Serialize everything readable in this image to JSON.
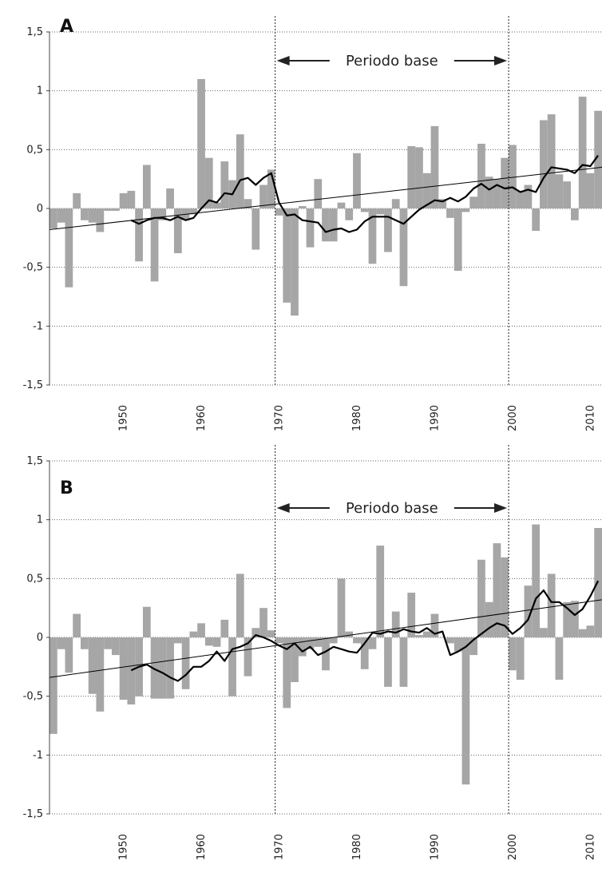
{
  "chart_data": [
    {
      "type": "bar",
      "panel": "A",
      "ylim": [
        -1.5,
        1.5
      ],
      "yticks": [
        "1,5",
        "1",
        "0,5",
        "0",
        "-0,5",
        "-1",
        "-1,5"
      ],
      "ytick_values": [
        1.5,
        1,
        0.5,
        0,
        -0.5,
        -1,
        -1.5
      ],
      "xticks": [
        "1950",
        "1960",
        "1970",
        "1980",
        "1990",
        "2000",
        "2010"
      ],
      "xtick_values": [
        1950,
        1960,
        1970,
        1980,
        1990,
        2000,
        2010
      ],
      "xlim": [
        1941,
        2011
      ],
      "grid": "horizontal dotted",
      "base_period": {
        "label": "Periodo base",
        "start": 1969,
        "end": 1999
      },
      "bar_color": "#a6a6a6",
      "years": [
        1941,
        1942,
        1943,
        1944,
        1945,
        1946,
        1947,
        1948,
        1949,
        1950,
        1951,
        1952,
        1953,
        1954,
        1955,
        1956,
        1957,
        1958,
        1959,
        1960,
        1961,
        1962,
        1963,
        1964,
        1965,
        1966,
        1967,
        1968,
        1969,
        1970,
        1971,
        1972,
        1973,
        1974,
        1975,
        1976,
        1977,
        1978,
        1979,
        1980,
        1981,
        1982,
        1983,
        1984,
        1985,
        1986,
        1987,
        1988,
        1989,
        1990,
        1991,
        1992,
        1993,
        1994,
        1995,
        1996,
        1997,
        1998,
        1999,
        2000,
        2001,
        2002,
        2003,
        2004,
        2005,
        2006,
        2007,
        2008,
        2009,
        2010,
        2011
      ],
      "values": [
        -0.17,
        -0.12,
        -0.67,
        0.13,
        -0.1,
        -0.12,
        -0.2,
        -0.02,
        -0.02,
        0.13,
        0.15,
        -0.45,
        0.37,
        -0.62,
        -0.1,
        0.17,
        -0.38,
        -0.1,
        -0.05,
        1.1,
        0.43,
        0.05,
        0.4,
        0.24,
        0.63,
        0.08,
        -0.35,
        0.2,
        0.33,
        -0.06,
        -0.8,
        -0.91,
        0.02,
        -0.33,
        0.25,
        -0.28,
        -0.28,
        0.05,
        -0.1,
        0.47,
        -0.03,
        -0.47,
        -0.05,
        -0.37,
        0.08,
        -0.66,
        0.53,
        0.52,
        0.3,
        0.7,
        0.08,
        -0.08,
        -0.53,
        -0.03,
        0.1,
        0.55,
        0.27,
        0.25,
        0.43,
        0.54,
        0.15,
        0.2,
        -0.19,
        0.75,
        0.8,
        0.29,
        0.23,
        -0.1,
        0.95,
        0.3,
        0.83
      ],
      "moving_average": {
        "color": "#000000",
        "years": [
          1951,
          1952,
          1953,
          1954,
          1955,
          1956,
          1957,
          1958,
          1959,
          1960,
          1961,
          1962,
          1963,
          1964,
          1965,
          1966,
          1967,
          1968,
          1969,
          1970,
          1971,
          1972,
          1973,
          1974,
          1975,
          1976,
          1977,
          1978,
          1979,
          1980,
          1981,
          1982,
          1983,
          1984,
          1985,
          1986,
          1987,
          1988,
          1989,
          1990,
          1991,
          1992,
          1993,
          1994,
          1995,
          1996,
          1997,
          1998,
          1999,
          2000,
          2001,
          2002,
          2003,
          2004,
          2005,
          2006,
          2007,
          2008,
          2009,
          2010,
          2011
        ],
        "values": [
          -0.1,
          -0.13,
          -0.1,
          -0.08,
          -0.08,
          -0.1,
          -0.07,
          -0.1,
          -0.08,
          0,
          0.07,
          0.05,
          0.13,
          0.12,
          0.24,
          0.26,
          0.2,
          0.26,
          0.3,
          0.05,
          -0.06,
          -0.05,
          -0.1,
          -0.11,
          -0.12,
          -0.2,
          -0.18,
          -0.17,
          -0.2,
          -0.18,
          -0.11,
          -0.07,
          -0.07,
          -0.07,
          -0.1,
          -0.13,
          -0.07,
          -0.01,
          0.03,
          0.07,
          0.06,
          0.09,
          0.06,
          0.1,
          0.17,
          0.21,
          0.16,
          0.2,
          0.17,
          0.18,
          0.14,
          0.16,
          0.14,
          0.26,
          0.35,
          0.34,
          0.33,
          0.3,
          0.37,
          0.36,
          0.45
        ]
      },
      "trend": {
        "color": "#000000",
        "y_start": -0.18,
        "y_end": 0.35
      }
    },
    {
      "type": "bar",
      "panel": "B",
      "ylim": [
        -1.5,
        1.5
      ],
      "yticks": [
        "1,5",
        "1",
        "0,5",
        "0",
        "-0,5",
        "-1",
        "-1,5"
      ],
      "ytick_values": [
        1.5,
        1,
        0.5,
        0,
        -0.5,
        -1,
        -1.5
      ],
      "xticks": [
        "1950",
        "1960",
        "1970",
        "1980",
        "1990",
        "2000",
        "2010"
      ],
      "xtick_values": [
        1950,
        1960,
        1970,
        1980,
        1990,
        2000,
        2010
      ],
      "xlim": [
        1941,
        2011
      ],
      "grid": "horizontal dotted",
      "base_period": {
        "label": "Periodo base",
        "start": 1969,
        "end": 1999
      },
      "bar_color": "#a6a6a6",
      "years": [
        1941,
        1942,
        1943,
        1944,
        1945,
        1946,
        1947,
        1948,
        1949,
        1950,
        1951,
        1952,
        1953,
        1954,
        1955,
        1956,
        1957,
        1958,
        1959,
        1960,
        1961,
        1962,
        1963,
        1964,
        1965,
        1966,
        1967,
        1968,
        1969,
        1970,
        1971,
        1972,
        1973,
        1974,
        1975,
        1976,
        1977,
        1978,
        1979,
        1980,
        1981,
        1982,
        1983,
        1984,
        1985,
        1986,
        1987,
        1988,
        1989,
        1990,
        1991,
        1992,
        1993,
        1994,
        1995,
        1996,
        1997,
        1998,
        1999,
        2000,
        2001,
        2002,
        2003,
        2004,
        2005,
        2006,
        2007,
        2008,
        2009,
        2010,
        2011
      ],
      "values": [
        -0.82,
        -0.1,
        -0.3,
        0.2,
        -0.1,
        -0.48,
        -0.63,
        -0.1,
        -0.15,
        -0.53,
        -0.57,
        -0.5,
        0.26,
        -0.52,
        -0.52,
        -0.52,
        -0.05,
        -0.44,
        0.05,
        0.12,
        -0.07,
        -0.08,
        0.15,
        -0.5,
        0.54,
        -0.33,
        0.08,
        0.25,
        0.06,
        -0.05,
        -0.6,
        -0.38,
        -0.16,
        -0.1,
        -0.08,
        -0.28,
        -0.05,
        0.5,
        0.05,
        -0.05,
        -0.27,
        -0.1,
        0.78,
        -0.42,
        0.22,
        -0.42,
        0.38,
        0.02,
        0.05,
        0.2,
        0.0,
        -0.05,
        -0.12,
        -1.25,
        -0.15,
        0.66,
        0.3,
        0.8,
        0.68,
        -0.28,
        -0.36,
        0.44,
        0.96,
        0.08,
        0.54,
        -0.36,
        0.3,
        0.31,
        0.07,
        0.1,
        0.93
      ],
      "moving_average": {
        "color": "#000000",
        "years": [
          1951,
          1952,
          1953,
          1954,
          1955,
          1956,
          1957,
          1958,
          1959,
          1960,
          1961,
          1962,
          1963,
          1964,
          1965,
          1966,
          1967,
          1968,
          1969,
          1970,
          1971,
          1972,
          1973,
          1974,
          1975,
          1976,
          1977,
          1978,
          1979,
          1980,
          1981,
          1982,
          1983,
          1984,
          1985,
          1986,
          1987,
          1988,
          1989,
          1990,
          1991,
          1992,
          1993,
          1994,
          1995,
          1996,
          1997,
          1998,
          1999,
          2000,
          2001,
          2002,
          2003,
          2004,
          2005,
          2006,
          2007,
          2008,
          2009,
          2010,
          2011
        ],
        "values": [
          -0.28,
          -0.25,
          -0.23,
          -0.27,
          -0.3,
          -0.34,
          -0.37,
          -0.32,
          -0.25,
          -0.25,
          -0.2,
          -0.12,
          -0.2,
          -0.1,
          -0.08,
          -0.05,
          0.02,
          0.0,
          -0.03,
          -0.07,
          -0.1,
          -0.05,
          -0.12,
          -0.08,
          -0.15,
          -0.12,
          -0.08,
          -0.1,
          -0.12,
          -0.13,
          -0.05,
          0.04,
          0.03,
          0.05,
          0.04,
          0.07,
          0.05,
          0.04,
          0.08,
          0.03,
          0.05,
          -0.15,
          -0.12,
          -0.08,
          -0.02,
          0.03,
          0.08,
          0.12,
          0.1,
          0.03,
          0.08,
          0.15,
          0.33,
          0.4,
          0.3,
          0.3,
          0.25,
          0.19,
          0.24,
          0.35,
          0.48
        ]
      },
      "trend": {
        "color": "#000000",
        "y_start": -0.34,
        "y_end": 0.32
      }
    }
  ]
}
